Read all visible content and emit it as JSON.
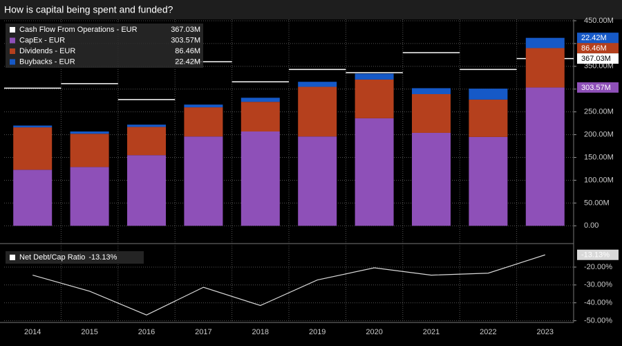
{
  "chart_data": [
    {
      "type": "bar",
      "stacked": true,
      "title": "How is capital being spent and funded?",
      "ylim": [
        -36,
        453
      ],
      "yticks": [
        {
          "value": 0,
          "label": "0.00"
        },
        {
          "value": 50,
          "label": "50.00M"
        },
        {
          "value": 100,
          "label": "100.00M"
        },
        {
          "value": 150,
          "label": "150.00M"
        },
        {
          "value": 200,
          "label": "200.00M"
        },
        {
          "value": 250,
          "label": "250.00M"
        },
        {
          "value": 300,
          "label": "300.00M"
        },
        {
          "value": 350,
          "label": "350.00M"
        },
        {
          "value": 400,
          "label": "400.00M"
        },
        {
          "value": 450,
          "label": "450.00M"
        }
      ],
      "grid": true,
      "series": [
        {
          "name": "Cash Flow From Operations - EUR",
          "type": "line",
          "color": "#ffffff",
          "values": [
            302,
            312,
            277,
            360,
            316,
            343,
            336,
            380,
            343,
            367.03
          ],
          "value_labels": [
            null,
            null,
            null,
            null,
            null,
            null,
            null,
            null,
            null,
            "367.03M"
          ]
        },
        {
          "name": "CapEx - EUR",
          "type": "bar",
          "color": "#8e50b8",
          "values": [
            123,
            129,
            155,
            196,
            207,
            196,
            236,
            204,
            195,
            303.57
          ],
          "value_labels": [
            null,
            null,
            null,
            null,
            null,
            null,
            null,
            null,
            null,
            "303.57M"
          ]
        },
        {
          "name": "Dividends - EUR",
          "type": "bar",
          "color": "#b5401d",
          "values": [
            93,
            73,
            62,
            64,
            65,
            109,
            85,
            85,
            82,
            86.46
          ],
          "value_labels": [
            null,
            null,
            null,
            null,
            null,
            null,
            null,
            null,
            null,
            "86.46M"
          ]
        },
        {
          "name": "Buybacks - EUR",
          "type": "bar",
          "color": "#1659c7",
          "values": [
            4,
            5,
            5,
            6,
            9,
            11,
            13,
            13,
            24,
            22.42
          ],
          "value_labels": [
            null,
            null,
            null,
            null,
            null,
            null,
            null,
            null,
            null,
            "22.42M"
          ]
        }
      ]
    },
    {
      "type": "line",
      "categories": [
        "2014",
        "2015",
        "2016",
        "2017",
        "2018",
        "2019",
        "2020",
        "2021",
        "2022",
        "2023"
      ],
      "ylim": [
        -51,
        -8
      ],
      "yticks": [
        {
          "value": -20,
          "label": "-20.00%"
        },
        {
          "value": -30,
          "label": "-30.00%"
        },
        {
          "value": -40,
          "label": "-40.00%"
        },
        {
          "value": -50,
          "label": "-50.00%"
        }
      ],
      "grid": true,
      "series": [
        {
          "name": "Net Debt/Cap Ratio",
          "color": "#d9d9d9",
          "values": [
            -24.5,
            -33.5,
            -46.8,
            -31.3,
            -41.5,
            -27.2,
            -20.4,
            -24.5,
            -23.4,
            -13.13
          ],
          "value_labels": [
            null,
            null,
            null,
            null,
            null,
            null,
            null,
            null,
            null,
            "-13.13%"
          ]
        }
      ]
    }
  ]
}
